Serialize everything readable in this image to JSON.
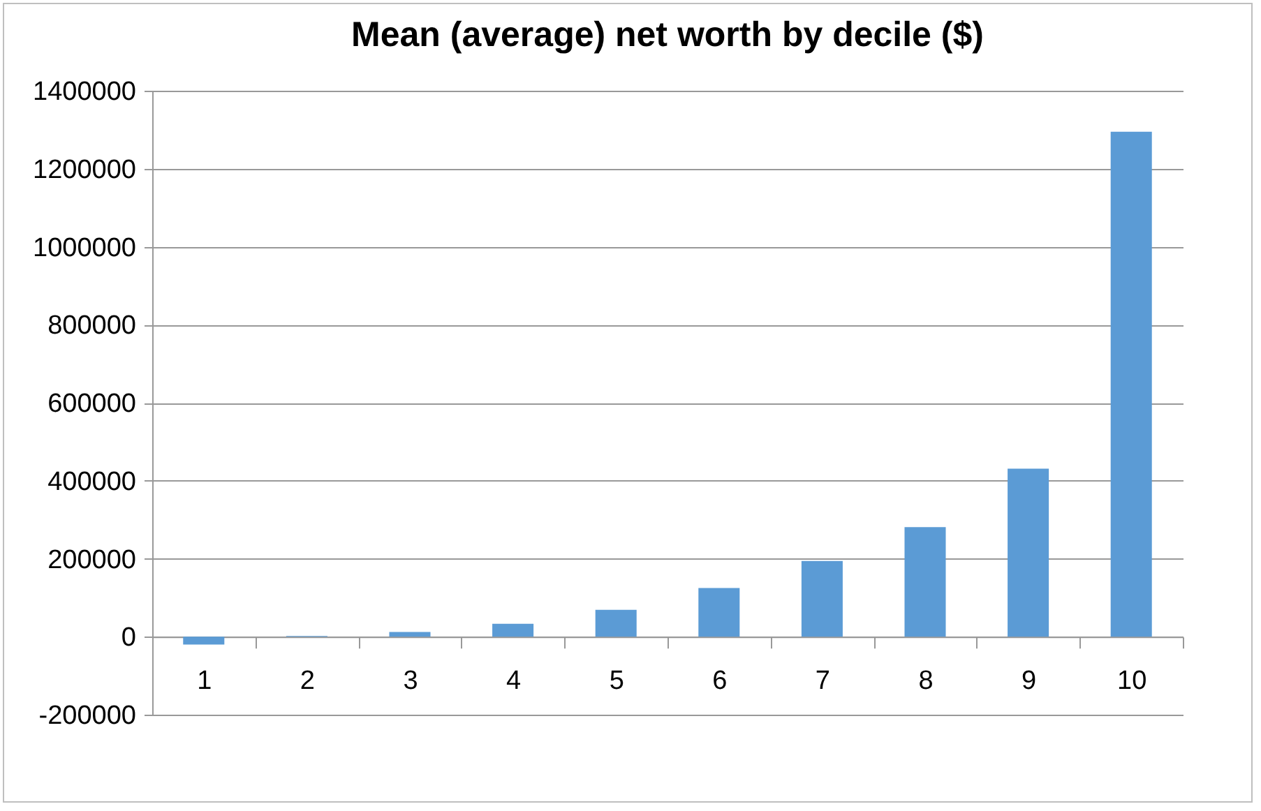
{
  "chart_data": {
    "type": "bar",
    "title": "Mean (average) net worth by decile ($)",
    "categories": [
      "1",
      "2",
      "3",
      "4",
      "5",
      "6",
      "7",
      "8",
      "9",
      "10"
    ],
    "values": [
      -20000,
      2000,
      12000,
      33000,
      69000,
      125000,
      194000,
      281000,
      431000,
      1295000
    ],
    "color": "#5b9bd5",
    "ylim": [
      -200000,
      1400000
    ],
    "yticks": [
      -200000,
      0,
      200000,
      400000,
      600000,
      800000,
      1000000,
      1200000,
      1400000
    ],
    "grid": "y"
  }
}
